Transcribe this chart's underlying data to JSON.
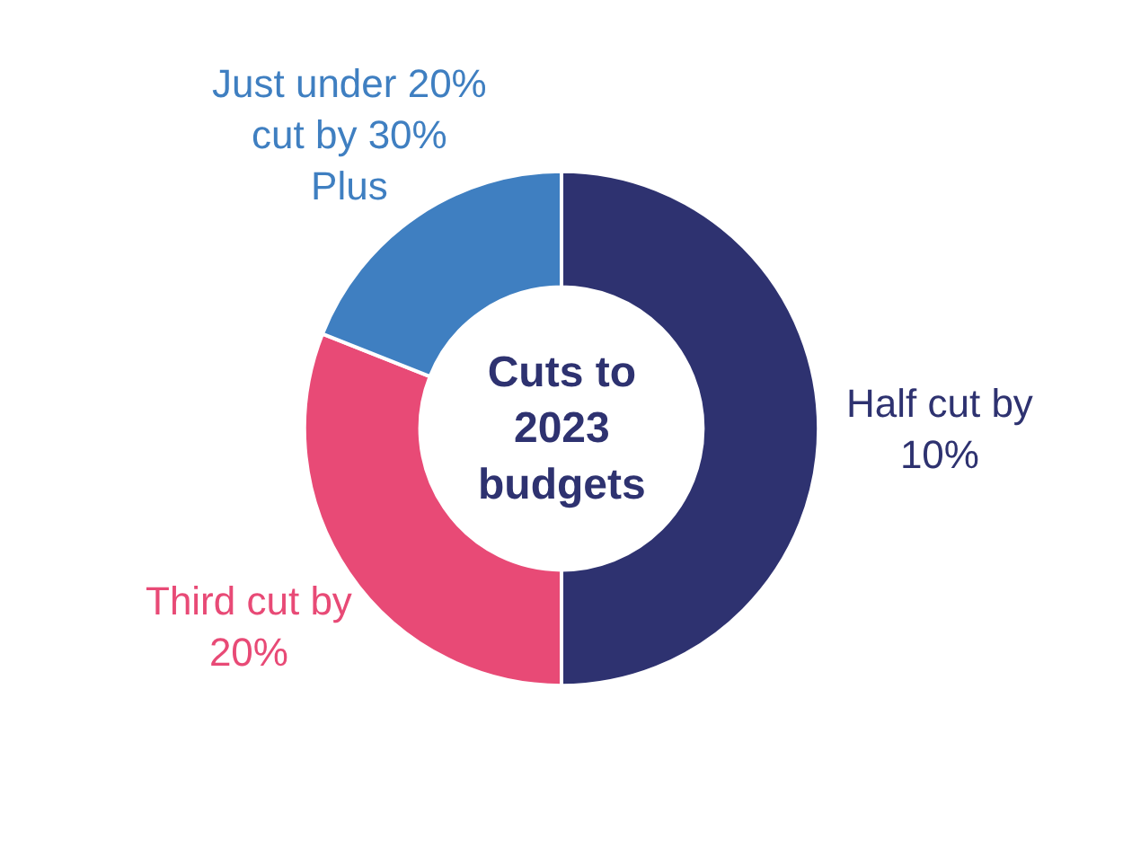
{
  "chart_data": {
    "type": "donut",
    "title": "Cuts to 2023 budgets",
    "categories": [
      "Half cut by 10%",
      "Third cut by 20%",
      "Just under 20% cut by 30% Plus"
    ],
    "values": [
      50,
      31,
      19
    ],
    "colors": [
      "#2e3270",
      "#e84a76",
      "#3f7fc1"
    ],
    "legend": false
  }
}
